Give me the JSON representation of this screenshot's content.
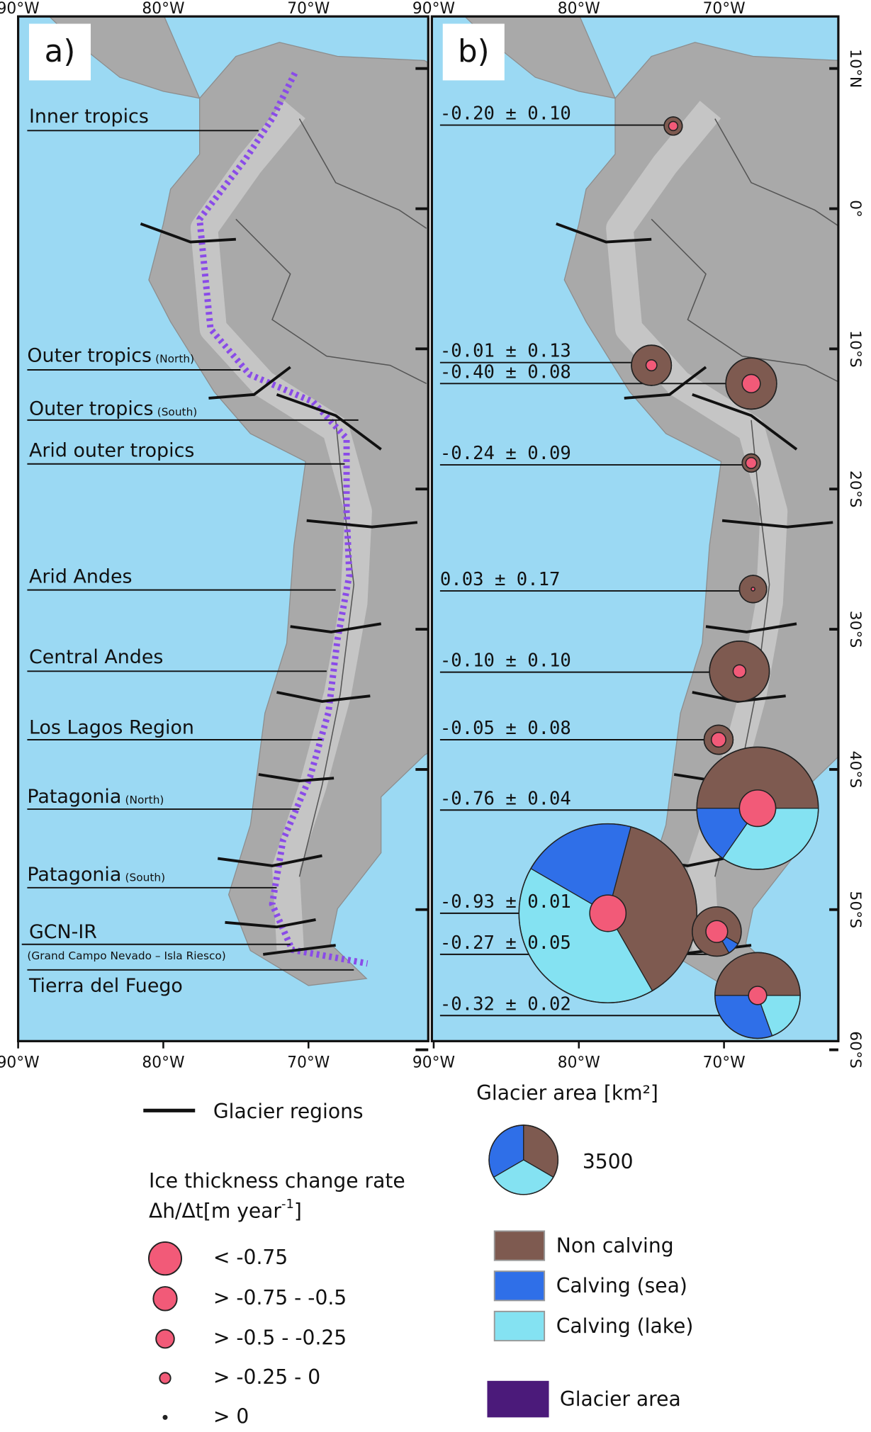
{
  "panels": [
    {
      "label": "a)",
      "lon_ticks": [
        "90°W",
        "80°W",
        "70°W"
      ],
      "regions": [
        {
          "name": "Inner tropics"
        },
        {
          "name": "Outer tropics",
          "note": "(North)"
        },
        {
          "name": "Outer tropics",
          "note": "(South)"
        },
        {
          "name": "Arid outer tropics"
        },
        {
          "name": "Arid Andes"
        },
        {
          "name": "Central Andes"
        },
        {
          "name": "Los Lagos Region"
        },
        {
          "name": "Patagonia",
          "note": "(North)"
        },
        {
          "name": "Patagonia",
          "note": "(South)"
        },
        {
          "name": "GCN-IR",
          "note": "(Grand Campo Nevado – Isla Riesco)"
        },
        {
          "name": "Tierra del Fuego"
        }
      ]
    },
    {
      "label": "b)",
      "lon_ticks": [
        "90°W",
        "80°W",
        "70°W"
      ],
      "lat_ticks": [
        "10°N",
        "0°",
        "10°S",
        "20°S",
        "30°S",
        "40°S",
        "50°S",
        "60°S"
      ],
      "rates": [
        "-0.20 ± 0.10",
        "-0.01 ± 0.13",
        "-0.40 ± 0.08",
        "-0.24 ± 0.09",
        "0.03 ± 0.17",
        "-0.10 ± 0.10",
        "-0.05 ± 0.08",
        "-0.76 ± 0.04",
        "-0.93 ± 0.01",
        "-0.27 ± 0.05",
        "-0.32 ± 0.02"
      ]
    }
  ],
  "legend": {
    "regions_line": "Glacier regions",
    "rate_title": "Ice thickness change rate",
    "rate_unit": "Δh/Δt[m year",
    "rate_unit_exp": "-1",
    "rate_unit_end": "]",
    "rate_classes": [
      "< -0.75",
      "> -0.75 - -0.5",
      "> -0.5 - -0.25",
      "> -0.25 - 0",
      "> 0"
    ],
    "area_title": "Glacier area [km²]",
    "area_reference": "3500",
    "calving_types": [
      "Non calving",
      "Calving (sea)",
      "Calving (lake)"
    ],
    "glacier_area": "Glacier area"
  }
}
